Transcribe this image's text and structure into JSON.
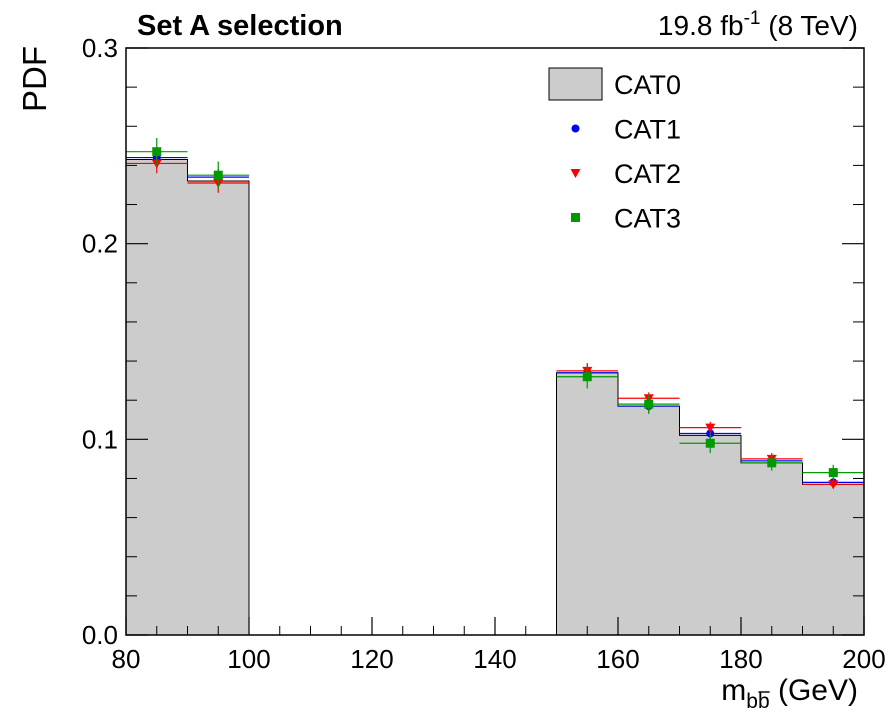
{
  "header": {
    "left_title": "Set A selection",
    "lumi_prefix": "19.8 fb",
    "lumi_exp": "-1",
    "lumi_suffix": " (8 TeV)"
  },
  "chart_data": {
    "type": "histogram",
    "ylabel": "PDF",
    "xlabel_main": "m",
    "xlabel_sub": "bb",
    "xlabel_unit": " (GeV)",
    "xlim": [
      80,
      200
    ],
    "ylim": [
      0,
      0.3
    ],
    "x_ticks": [
      "80",
      "100",
      "120",
      "140",
      "160",
      "180",
      "200"
    ],
    "y_ticks": [
      "0.0",
      "0.1",
      "0.2",
      "0.3"
    ],
    "bin_edges": [
      80,
      90,
      100,
      110,
      120,
      130,
      140,
      150,
      160,
      170,
      180,
      190,
      200
    ],
    "series": [
      {
        "name": "CAT0",
        "style": "filled",
        "color": "#cccccc",
        "values": [
          0.243,
          0.232,
          0,
          0,
          0,
          0,
          0,
          0.134,
          0.117,
          0.102,
          0.088,
          0.077
        ]
      },
      {
        "name": "CAT1",
        "style": "marker-circle",
        "color": "#0000ff",
        "values": [
          0.244,
          0.234,
          0,
          0,
          0,
          0,
          0,
          0.134,
          0.117,
          0.103,
          0.089,
          0.078
        ],
        "errors": [
          0.004,
          0.004,
          0,
          0,
          0,
          0,
          0,
          0.003,
          0.003,
          0.003,
          0.002,
          0.002
        ]
      },
      {
        "name": "CAT2",
        "style": "marker-triangle-down",
        "color": "#ff0000",
        "values": [
          0.241,
          0.231,
          0,
          0,
          0,
          0,
          0,
          0.135,
          0.121,
          0.106,
          0.09,
          0.077
        ],
        "errors": [
          0.005,
          0.005,
          0,
          0,
          0,
          0,
          0,
          0.004,
          0.003,
          0.003,
          0.003,
          0.002
        ]
      },
      {
        "name": "CAT3",
        "style": "marker-square",
        "color": "#009900",
        "values": [
          0.247,
          0.235,
          0,
          0,
          0,
          0,
          0,
          0.132,
          0.118,
          0.098,
          0.088,
          0.083
        ],
        "errors": [
          0.007,
          0.007,
          0,
          0,
          0,
          0,
          0,
          0.006,
          0.005,
          0.005,
          0.004,
          0.004
        ]
      }
    ],
    "legend_position": "top-right"
  }
}
